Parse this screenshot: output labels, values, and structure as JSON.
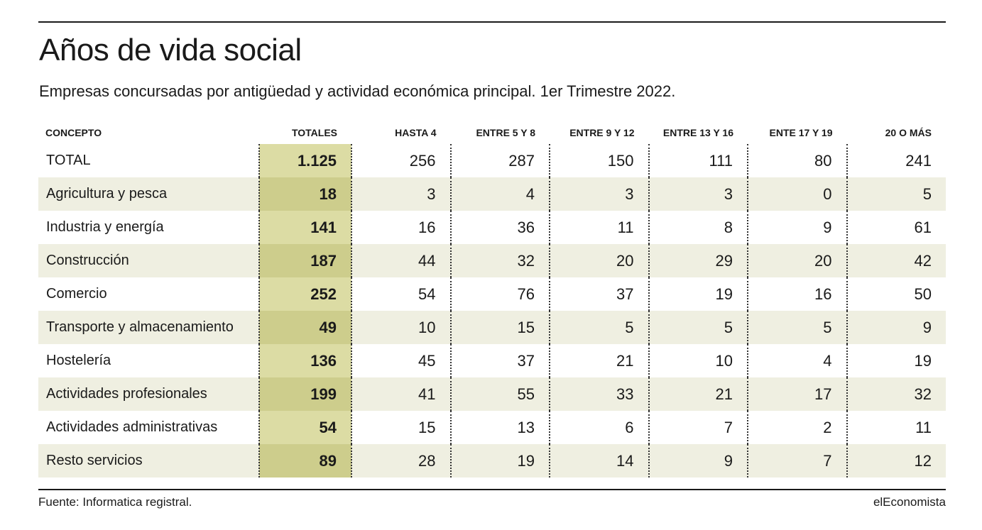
{
  "title": "Años de vida social",
  "subtitle": "Empresas concursadas por antigüedad y actividad económica principal. 1er Trimestre 2022.",
  "source": "Fuente: Informatica registral.",
  "brand": "elEconomista",
  "colors": {
    "total_col": "#dcdca4",
    "total_col_alt": "#cdcd8c",
    "row_alt": "#efefe1",
    "text": "#1a1a1a"
  },
  "chart_data": {
    "type": "table",
    "columns": [
      "CONCEPTO",
      "TOTALES",
      "HASTA 4",
      "ENTRE 5 Y 8",
      "ENTRE 9 Y 12",
      "ENTRE 13 Y 16",
      "ENTE 17 Y 19",
      "20 O MÁS"
    ],
    "rows": [
      [
        "TOTAL",
        "1.125",
        "256",
        "287",
        "150",
        "111",
        "80",
        "241"
      ],
      [
        "Agricultura y pesca",
        "18",
        "3",
        "4",
        "3",
        "3",
        "0",
        "5"
      ],
      [
        "Industria y energía",
        "141",
        "16",
        "36",
        "11",
        "8",
        "9",
        "61"
      ],
      [
        "Construcción",
        "187",
        "44",
        "32",
        "20",
        "29",
        "20",
        "42"
      ],
      [
        "Comercio",
        "252",
        "54",
        "76",
        "37",
        "19",
        "16",
        "50"
      ],
      [
        "Transporte y almacenamiento",
        "49",
        "10",
        "15",
        "5",
        "5",
        "5",
        "9"
      ],
      [
        "Hostelería",
        "136",
        "45",
        "37",
        "21",
        "10",
        "4",
        "19"
      ],
      [
        "Actividades profesionales",
        "199",
        "41",
        "55",
        "33",
        "21",
        "17",
        "32"
      ],
      [
        "Actividades administrativas",
        "54",
        "15",
        "13",
        "6",
        "7",
        "2",
        "11"
      ],
      [
        "Resto servicios",
        "89",
        "28",
        "19",
        "14",
        "9",
        "7",
        "12"
      ]
    ]
  }
}
